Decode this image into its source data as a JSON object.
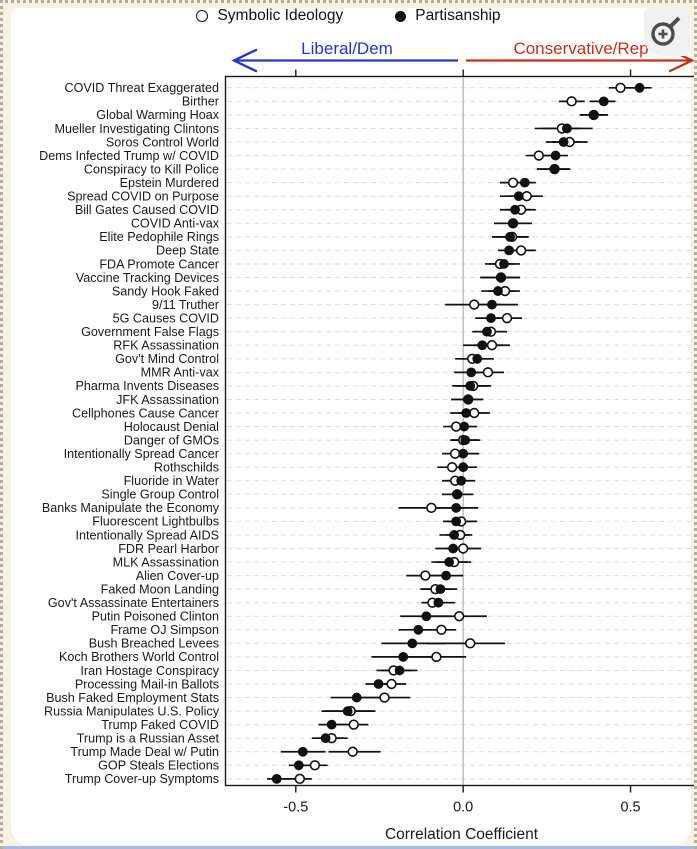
{
  "legend": {
    "symbolic_label": "Symbolic Ideology",
    "partisanship_label": "Partisanship"
  },
  "zoom_icon": {
    "name": "magnifier-plus"
  },
  "chart_data": {
    "type": "scatter",
    "subtype": "dot-and-whisker",
    "title": "",
    "xlabel": "Correlation Coefficient",
    "ylabel": "",
    "xlim": [
      -0.71,
      0.7
    ],
    "x_ticks": [
      -0.5,
      0.0,
      0.5
    ],
    "x_tick_labels": [
      "-0.5",
      "0.0",
      "0.5"
    ],
    "grid": "horizontal-dashed",
    "zero_reference_line": 0.0,
    "legend_position": "top-center",
    "legend": [
      {
        "name": "Symbolic Ideology",
        "marker": "open-circle"
      },
      {
        "name": "Partisanship",
        "marker": "filled-circle"
      }
    ],
    "axis_arrows": {
      "left_label": "Liberal/Dem",
      "left_color": "#2336c4",
      "right_label": "Conservative/Rep",
      "right_color": "#c4301c"
    },
    "rows": [
      {
        "label": "COVID Threat Exaggerated",
        "symbolic": {
          "v": 0.47,
          "lo": 0.435,
          "hi": 0.512
        },
        "partisanship": {
          "v": 0.527,
          "lo": 0.488,
          "hi": 0.563
        }
      },
      {
        "label": "Birther",
        "symbolic": {
          "v": 0.324,
          "lo": 0.286,
          "hi": 0.363
        },
        "partisanship": {
          "v": 0.42,
          "lo": 0.378,
          "hi": 0.455
        }
      },
      {
        "label": "Global Warming Hoax",
        "symbolic": {
          "v": 0.39,
          "lo": 0.348,
          "hi": 0.432
        },
        "partisanship": {
          "v": 0.39,
          "lo": 0.352,
          "hi": 0.432
        }
      },
      {
        "label": "Mueller Investigating Clintons",
        "symbolic": {
          "v": 0.295,
          "lo": 0.214,
          "hi": 0.35
        },
        "partisanship": {
          "v": 0.31,
          "lo": 0.238,
          "hi": 0.387
        }
      },
      {
        "label": "Soros Control World",
        "symbolic": {
          "v": 0.318,
          "lo": 0.265,
          "hi": 0.372
        },
        "partisanship": {
          "v": 0.3,
          "lo": 0.247,
          "hi": 0.351
        }
      },
      {
        "label": "Dems Infected Trump w/ COVID",
        "symbolic": {
          "v": 0.226,
          "lo": 0.187,
          "hi": 0.265
        },
        "partisanship": {
          "v": 0.276,
          "lo": 0.235,
          "hi": 0.313
        }
      },
      {
        "label": "Conspiracy to Kill Police",
        "symbolic": {
          "v": 0.273,
          "lo": 0.222,
          "hi": 0.32
        },
        "partisanship": {
          "v": 0.273,
          "lo": 0.22,
          "hi": 0.318
        }
      },
      {
        "label": "Epstein Murdered",
        "symbolic": {
          "v": 0.149,
          "lo": 0.11,
          "hi": 0.187
        },
        "partisanship": {
          "v": 0.184,
          "lo": 0.143,
          "hi": 0.217
        }
      },
      {
        "label": "Spread COVID on Purpose",
        "symbolic": {
          "v": 0.19,
          "lo": 0.134,
          "hi": 0.238
        },
        "partisanship": {
          "v": 0.166,
          "lo": 0.11,
          "hi": 0.217
        }
      },
      {
        "label": "Bill Gates Caused COVID",
        "symbolic": {
          "v": 0.173,
          "lo": 0.128,
          "hi": 0.217
        },
        "partisanship": {
          "v": 0.155,
          "lo": 0.11,
          "hi": 0.202
        }
      },
      {
        "label": "COVID Anti-vax",
        "symbolic": {
          "v": 0.149,
          "lo": 0.092,
          "hi": 0.205
        },
        "partisanship": {
          "v": 0.149,
          "lo": 0.092,
          "hi": 0.205
        }
      },
      {
        "label": "Elite Pedophile Rings",
        "symbolic": {
          "v": 0.146,
          "lo": 0.09,
          "hi": 0.196
        },
        "partisanship": {
          "v": 0.14,
          "lo": 0.086,
          "hi": 0.193
        }
      },
      {
        "label": "Deep State",
        "symbolic": {
          "v": 0.173,
          "lo": 0.134,
          "hi": 0.217
        },
        "partisanship": {
          "v": 0.137,
          "lo": 0.104,
          "hi": 0.179
        }
      },
      {
        "label": "FDA Promote Cancer",
        "symbolic": {
          "v": 0.11,
          "lo": 0.065,
          "hi": 0.155
        },
        "partisanship": {
          "v": 0.122,
          "lo": 0.077,
          "hi": 0.17
        }
      },
      {
        "label": "Vaccine Tracking Devices",
        "symbolic": {
          "v": 0.113,
          "lo": 0.051,
          "hi": 0.17
        },
        "partisanship": {
          "v": 0.113,
          "lo": 0.051,
          "hi": 0.17
        }
      },
      {
        "label": "Sandy Hook Faked",
        "symbolic": {
          "v": 0.125,
          "lo": 0.074,
          "hi": 0.17
        },
        "partisanship": {
          "v": 0.104,
          "lo": 0.054,
          "hi": 0.155
        }
      },
      {
        "label": "9/11 Truther",
        "symbolic": {
          "v": 0.033,
          "lo": -0.054,
          "hi": 0.113
        },
        "partisanship": {
          "v": 0.086,
          "lo": 0.036,
          "hi": 0.164
        }
      },
      {
        "label": "5G Causes COVID",
        "symbolic": {
          "v": 0.131,
          "lo": 0.074,
          "hi": 0.176
        },
        "partisanship": {
          "v": 0.083,
          "lo": 0.036,
          "hi": 0.134
        }
      },
      {
        "label": "Government False Flags",
        "symbolic": {
          "v": 0.083,
          "lo": 0.033,
          "hi": 0.131
        },
        "partisanship": {
          "v": 0.071,
          "lo": 0.027,
          "hi": 0.128
        }
      },
      {
        "label": "RFK Assassination",
        "symbolic": {
          "v": 0.086,
          "lo": 0.03,
          "hi": 0.14
        },
        "partisanship": {
          "v": 0.057,
          "lo": 0.0,
          "hi": 0.119
        }
      },
      {
        "label": "Gov't Mind Control",
        "symbolic": {
          "v": 0.027,
          "lo": -0.024,
          "hi": 0.08
        },
        "partisanship": {
          "v": 0.042,
          "lo": -0.009,
          "hi": 0.092
        }
      },
      {
        "label": "MMR Anti-vax",
        "symbolic": {
          "v": 0.074,
          "lo": 0.021,
          "hi": 0.122
        },
        "partisanship": {
          "v": 0.024,
          "lo": -0.027,
          "hi": 0.077
        }
      },
      {
        "label": "Pharma Invents Diseases",
        "symbolic": {
          "v": 0.03,
          "lo": -0.021,
          "hi": 0.083
        },
        "partisanship": {
          "v": 0.021,
          "lo": -0.033,
          "hi": 0.077
        }
      },
      {
        "label": "JFK Assassination",
        "symbolic": {
          "v": 0.015,
          "lo": -0.036,
          "hi": 0.06
        },
        "partisanship": {
          "v": 0.015,
          "lo": -0.036,
          "hi": 0.06
        }
      },
      {
        "label": "Cellphones Cause Cancer",
        "symbolic": {
          "v": 0.033,
          "lo": -0.015,
          "hi": 0.08
        },
        "partisanship": {
          "v": 0.009,
          "lo": -0.039,
          "hi": 0.051
        }
      },
      {
        "label": "Holocaust Denial",
        "symbolic": {
          "v": -0.021,
          "lo": -0.06,
          "hi": 0.024
        },
        "partisanship": {
          "v": 0.003,
          "lo": -0.042,
          "hi": 0.042
        }
      },
      {
        "label": "Danger of GMOs",
        "symbolic": {
          "v": 0.0,
          "lo": -0.039,
          "hi": 0.045
        },
        "partisanship": {
          "v": 0.006,
          "lo": -0.036,
          "hi": 0.051
        }
      },
      {
        "label": "Intentionally Spread Cancer",
        "symbolic": {
          "v": -0.024,
          "lo": -0.063,
          "hi": 0.018
        },
        "partisanship": {
          "v": 0.0,
          "lo": -0.042,
          "hi": 0.048
        }
      },
      {
        "label": "Rothschilds",
        "symbolic": {
          "v": -0.033,
          "lo": -0.077,
          "hi": 0.012
        },
        "partisanship": {
          "v": 0.0,
          "lo": -0.045,
          "hi": 0.042
        }
      },
      {
        "label": "Fluoride in Water",
        "symbolic": {
          "v": -0.024,
          "lo": -0.063,
          "hi": 0.015
        },
        "partisanship": {
          "v": -0.006,
          "lo": -0.048,
          "hi": 0.036
        }
      },
      {
        "label": "Single Group Control",
        "symbolic": {
          "v": -0.018,
          "lo": -0.063,
          "hi": 0.03
        },
        "partisanship": {
          "v": -0.018,
          "lo": -0.063,
          "hi": 0.03
        }
      },
      {
        "label": "Banks Manipulate the Economy",
        "symbolic": {
          "v": -0.095,
          "lo": -0.193,
          "hi": 0.006
        },
        "partisanship": {
          "v": -0.021,
          "lo": -0.08,
          "hi": 0.045
        }
      },
      {
        "label": "Fluorescent Lightbulbs",
        "symbolic": {
          "v": -0.006,
          "lo": -0.048,
          "hi": 0.042
        },
        "partisanship": {
          "v": -0.021,
          "lo": -0.06,
          "hi": 0.024
        }
      },
      {
        "label": "Intentionally Spread AIDS",
        "symbolic": {
          "v": -0.009,
          "lo": -0.051,
          "hi": 0.027
        },
        "partisanship": {
          "v": -0.027,
          "lo": -0.071,
          "hi": 0.018
        }
      },
      {
        "label": "FDR Pearl Harbor",
        "symbolic": {
          "v": 0.0,
          "lo": -0.054,
          "hi": 0.054
        },
        "partisanship": {
          "v": -0.03,
          "lo": -0.083,
          "hi": 0.024
        }
      },
      {
        "label": "MLK Assassination",
        "symbolic": {
          "v": -0.027,
          "lo": -0.08,
          "hi": 0.024
        },
        "partisanship": {
          "v": -0.042,
          "lo": -0.095,
          "hi": 0.012
        }
      },
      {
        "label": "Alien Cover-up",
        "symbolic": {
          "v": -0.113,
          "lo": -0.17,
          "hi": -0.063
        },
        "partisanship": {
          "v": -0.051,
          "lo": -0.104,
          "hi": 0.0
        }
      },
      {
        "label": "Faked Moon Landing",
        "symbolic": {
          "v": -0.083,
          "lo": -0.128,
          "hi": -0.039
        },
        "partisanship": {
          "v": -0.068,
          "lo": -0.113,
          "hi": -0.018
        }
      },
      {
        "label": "Gov't Assassinate Entertainers",
        "symbolic": {
          "v": -0.092,
          "lo": -0.125,
          "hi": -0.045
        },
        "partisanship": {
          "v": -0.074,
          "lo": -0.119,
          "hi": -0.024
        }
      },
      {
        "label": "Putin Poisoned Clinton",
        "symbolic": {
          "v": -0.012,
          "lo": -0.119,
          "hi": 0.071
        },
        "partisanship": {
          "v": -0.11,
          "lo": -0.188,
          "hi": -0.036
        }
      },
      {
        "label": "Frame OJ Simpson",
        "symbolic": {
          "v": -0.065,
          "lo": -0.128,
          "hi": -0.021
        },
        "partisanship": {
          "v": -0.134,
          "lo": -0.193,
          "hi": -0.074
        }
      },
      {
        "label": "Bush Breached Levees",
        "symbolic": {
          "v": 0.021,
          "lo": -0.11,
          "hi": 0.125
        },
        "partisanship": {
          "v": -0.152,
          "lo": -0.244,
          "hi": -0.054
        }
      },
      {
        "label": "Koch Brothers World Control",
        "symbolic": {
          "v": -0.08,
          "lo": -0.17,
          "hi": 0.009
        },
        "partisanship": {
          "v": -0.179,
          "lo": -0.274,
          "hi": -0.083
        }
      },
      {
        "label": "Iran Hostage Conspiracy",
        "symbolic": {
          "v": -0.208,
          "lo": -0.259,
          "hi": -0.155
        },
        "partisanship": {
          "v": -0.19,
          "lo": -0.245,
          "hi": -0.137
        }
      },
      {
        "label": "Processing Mail-in Ballots",
        "symbolic": {
          "v": -0.214,
          "lo": -0.253,
          "hi": -0.17
        },
        "partisanship": {
          "v": -0.253,
          "lo": -0.292,
          "hi": -0.208
        }
      },
      {
        "label": "Bush Faked Employment Stats",
        "symbolic": {
          "v": -0.235,
          "lo": -0.318,
          "hi": -0.158
        },
        "partisanship": {
          "v": -0.318,
          "lo": -0.396,
          "hi": -0.244
        }
      },
      {
        "label": "Russia Manipulates U.S. Policy",
        "symbolic": {
          "v": -0.336,
          "lo": -0.411,
          "hi": -0.262
        },
        "partisanship": {
          "v": -0.345,
          "lo": -0.423,
          "hi": -0.268
        }
      },
      {
        "label": "Trump Faked COVID",
        "symbolic": {
          "v": -0.327,
          "lo": -0.378,
          "hi": -0.283
        },
        "partisanship": {
          "v": -0.393,
          "lo": -0.432,
          "hi": -0.348
        }
      },
      {
        "label": "Trump is a Russian Asset",
        "symbolic": {
          "v": -0.393,
          "lo": -0.444,
          "hi": -0.345
        },
        "partisanship": {
          "v": -0.411,
          "lo": -0.452,
          "hi": -0.357
        }
      },
      {
        "label": "Trump Made Deal w/ Putin",
        "symbolic": {
          "v": -0.33,
          "lo": -0.402,
          "hi": -0.247
        },
        "partisanship": {
          "v": -0.479,
          "lo": -0.545,
          "hi": -0.411
        }
      },
      {
        "label": "GOP Steals Elections",
        "symbolic": {
          "v": -0.443,
          "lo": -0.491,
          "hi": -0.405
        },
        "partisanship": {
          "v": -0.491,
          "lo": -0.521,
          "hi": -0.452
        }
      },
      {
        "label": "Trump Cover-up Symptoms",
        "symbolic": {
          "v": -0.488,
          "lo": -0.536,
          "hi": -0.452
        },
        "partisanship": {
          "v": -0.557,
          "lo": -0.586,
          "hi": -0.521
        }
      }
    ]
  }
}
